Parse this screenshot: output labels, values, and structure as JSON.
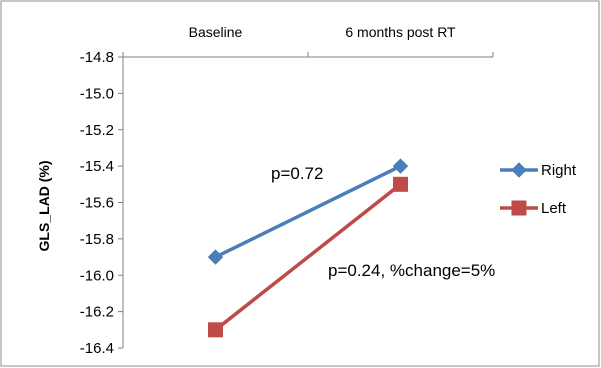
{
  "chart_data": {
    "type": "line",
    "categories": [
      "Baseline",
      "6 months post RT"
    ],
    "series": [
      {
        "name": "Right",
        "values": [
          -15.9,
          -15.4
        ],
        "color": "#4a7ebb",
        "marker": "diamond"
      },
      {
        "name": "Left",
        "values": [
          -16.3,
          -15.5
        ],
        "color": "#be4b48",
        "marker": "square"
      }
    ],
    "ylabel": "GLS_LAD (%)",
    "ylim": [
      -16.4,
      -14.8
    ],
    "yticks": [
      "-14.8",
      "-15.0",
      "-15.2",
      "-15.4",
      "-15.6",
      "-15.8",
      "-16.0",
      "-16.2",
      "-16.4"
    ],
    "ytick_values": [
      -14.8,
      -15.0,
      -15.2,
      -15.4,
      -15.6,
      -15.8,
      -16.0,
      -16.2,
      -16.4
    ],
    "category_axis_position": "top",
    "legend_position": "right",
    "grid": false,
    "annotations": [
      {
        "text": "p=0.72",
        "series": "Right"
      },
      {
        "text": "p=0.24, %change=5%",
        "series": "Left"
      }
    ]
  }
}
